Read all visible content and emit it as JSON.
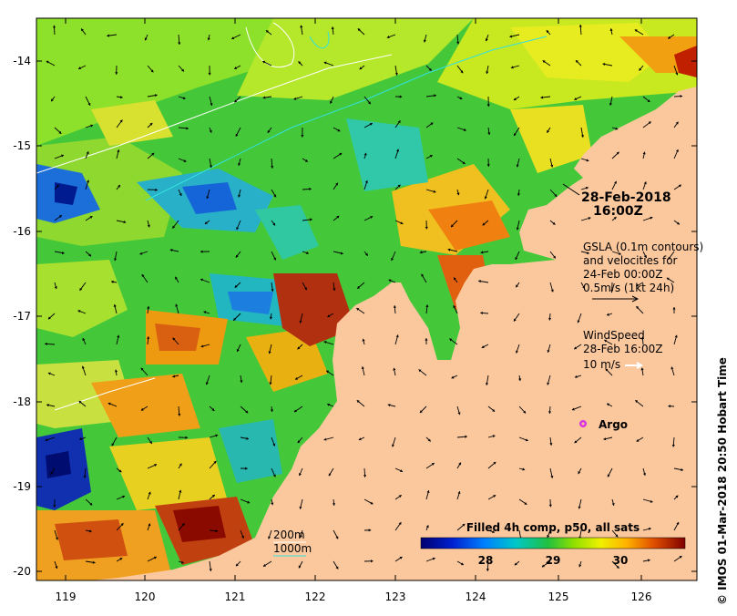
{
  "map": {
    "x_ticks": [
      "119",
      "120",
      "121",
      "122",
      "123",
      "124",
      "125",
      "126"
    ],
    "y_ticks": [
      "-14",
      "-15",
      "-16",
      "-17",
      "-18",
      "-19",
      "-20"
    ]
  },
  "snapshot": {
    "date": "28-Feb-2018",
    "time": "16:00Z"
  },
  "gsla": {
    "line1": "GSLA (0.1m contours)",
    "line2": "and velocities for",
    "line3": "24-Feb 00:00Z",
    "line4": "0.5m/s (1kt 24h)"
  },
  "wind": {
    "line1": "WindSpeed",
    "line2": "28-Feb 16:00Z",
    "scale": "10 m/s"
  },
  "argo": {
    "label": "Argo"
  },
  "depth_legend": {
    "a": "200m",
    "b": "1000m"
  },
  "colorbar": {
    "title": "Filled 4h comp, p50, all sats",
    "ticks": [
      "28",
      "29",
      "30"
    ]
  },
  "credit": "© IMOS 01-Mar-2018 20:50 Hobart Time",
  "colors": {
    "land": "#fbc89e",
    "arrow": "#000000",
    "wind_arrow": "#ffffff",
    "contour_200": "#ffffff",
    "contour_1000": "#33e0e0",
    "argo": "#dd33dd"
  }
}
